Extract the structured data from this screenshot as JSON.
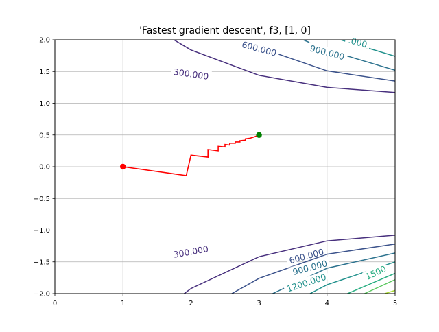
{
  "chart_data": {
    "type": "line",
    "title": "'Fastest gradient descent', f3, [1, 0]",
    "xlabel": "",
    "ylabel": "",
    "xlim": [
      0,
      5
    ],
    "ylim": [
      -2,
      2
    ],
    "grid": true,
    "xticks": [
      0,
      1,
      2,
      3,
      4,
      5
    ],
    "yticks": [
      -2.0,
      -1.5,
      -1.0,
      -0.5,
      0.0,
      0.5,
      1.0,
      1.5,
      2.0
    ],
    "xtick_labels": [
      "0",
      "1",
      "2",
      "3",
      "4",
      "5"
    ],
    "ytick_labels": [
      "−2.0",
      "−1.5",
      "−1.0",
      "−0.5",
      "0.0",
      "0.5",
      "1.0",
      "1.5",
      "2.0"
    ],
    "contours": [
      {
        "level": 300,
        "color": "#472f7d",
        "label": "300.000",
        "label_at": [
          2.0,
          1.45
        ],
        "label_angle": 8,
        "points": [
          [
            1.75,
            2.0
          ],
          [
            2.0,
            1.84
          ],
          [
            3.0,
            1.44
          ],
          [
            4.0,
            1.25
          ],
          [
            5.0,
            1.17
          ]
        ]
      },
      {
        "level": 600,
        "color": "#3b528b",
        "label": "600.000",
        "label_at": [
          3.0,
          1.85
        ],
        "label_angle": 15,
        "points": [
          [
            2.75,
            2.0
          ],
          [
            3.0,
            1.88
          ],
          [
            4.0,
            1.51
          ],
          [
            5.0,
            1.35
          ]
        ]
      },
      {
        "level": 900,
        "color": "#2c728e",
        "label": "900.000",
        "label_at": [
          4.0,
          1.79
        ],
        "label_angle": 15,
        "points": [
          [
            3.65,
            2.0
          ],
          [
            4.0,
            1.84
          ],
          [
            5.0,
            1.52
          ]
        ]
      },
      {
        "level": 1200,
        "color": "#21918c",
        "label": ".000",
        "label_at": [
          4.45,
          1.95
        ],
        "label_angle": 15,
        "points": [
          [
            4.2,
            2.0
          ],
          [
            5.0,
            1.74
          ]
        ]
      },
      {
        "level": 300,
        "color": "#472f7d",
        "label": "300.000",
        "label_at": [
          2.0,
          -1.35
        ],
        "label_angle": -10,
        "points": [
          [
            1.9,
            -2.0
          ],
          [
            2.0,
            -1.92
          ],
          [
            3.0,
            -1.42
          ],
          [
            4.0,
            -1.17
          ],
          [
            5.0,
            -1.08
          ]
        ]
      },
      {
        "level": 600,
        "color": "#3b528b",
        "label": "600.000",
        "label_at": [
          3.7,
          -1.42
        ],
        "label_angle": -15,
        "points": [
          [
            2.6,
            -2.0
          ],
          [
            3.0,
            -1.76
          ],
          [
            4.0,
            -1.38
          ],
          [
            5.0,
            -1.22
          ]
        ]
      },
      {
        "level": 900,
        "color": "#2c728e",
        "label": "900.000",
        "label_at": [
          3.75,
          -1.6
        ],
        "label_angle": -15,
        "points": [
          [
            3.2,
            -2.0
          ],
          [
            4.0,
            -1.6
          ],
          [
            5.0,
            -1.36
          ]
        ]
      },
      {
        "level": 1200,
        "color": "#21918c",
        "label": "1200.000",
        "label_at": [
          3.7,
          -1.84
        ],
        "label_angle": -18,
        "points": [
          [
            3.75,
            -2.0
          ],
          [
            4.0,
            -1.86
          ],
          [
            5.0,
            -1.5
          ]
        ]
      },
      {
        "level": 1500,
        "color": "#27ad81",
        "label": "1500",
        "label_at": [
          4.72,
          -1.68
        ],
        "label_angle": -25,
        "points": [
          [
            4.3,
            -2.0
          ],
          [
            5.0,
            -1.68
          ]
        ]
      },
      {
        "level": 1800,
        "color": "#5ec962",
        "label": "",
        "label_at": null,
        "label_angle": 0,
        "points": [
          [
            4.55,
            -2.0
          ],
          [
            5.0,
            -1.78
          ]
        ]
      },
      {
        "level": 2100,
        "color": "#aadc32",
        "label": "",
        "label_at": null,
        "label_angle": 0,
        "points": [
          [
            4.85,
            -2.0
          ],
          [
            5.0,
            -1.95
          ]
        ]
      }
    ],
    "path": {
      "color": "#ff0000",
      "points": [
        [
          1.0,
          0.0
        ],
        [
          1.93,
          -0.14
        ],
        [
          2.0,
          0.18
        ],
        [
          2.25,
          0.15
        ],
        [
          2.25,
          0.27
        ],
        [
          2.4,
          0.25
        ],
        [
          2.4,
          0.32
        ],
        [
          2.5,
          0.31
        ],
        [
          2.5,
          0.35
        ],
        [
          2.57,
          0.34
        ],
        [
          2.57,
          0.37
        ],
        [
          2.65,
          0.37
        ],
        [
          2.65,
          0.39
        ],
        [
          2.72,
          0.39
        ],
        [
          2.72,
          0.41
        ],
        [
          2.8,
          0.42
        ],
        [
          2.8,
          0.44
        ],
        [
          2.87,
          0.45
        ],
        [
          2.93,
          0.47
        ],
        [
          3.0,
          0.5
        ]
      ]
    },
    "start_point": {
      "x": 1.0,
      "y": 0.0,
      "color": "#ff0000"
    },
    "end_point": {
      "x": 3.0,
      "y": 0.5,
      "color": "#008000"
    }
  }
}
